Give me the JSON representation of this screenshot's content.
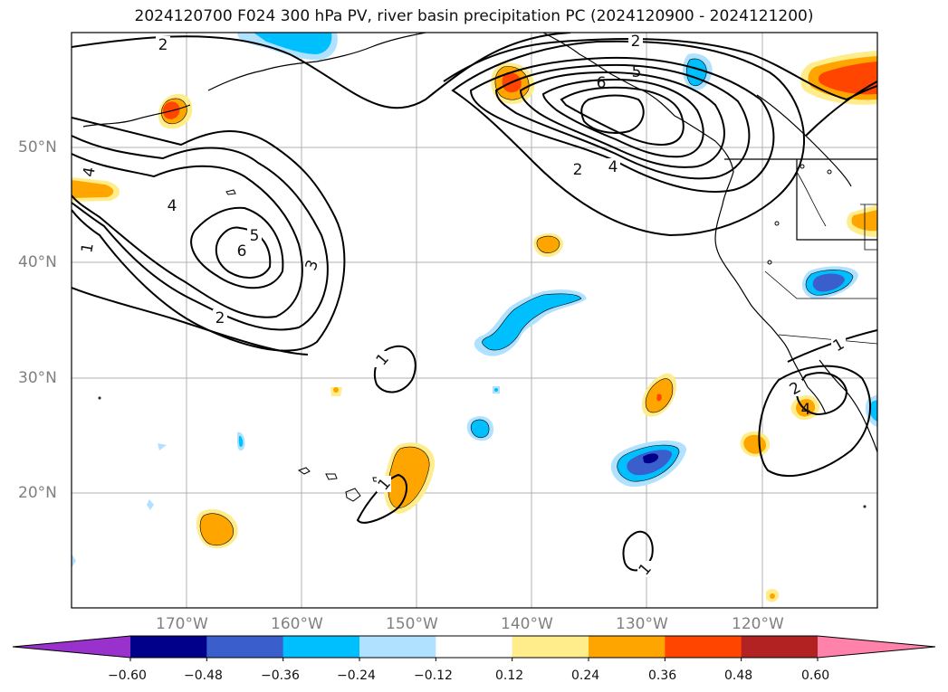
{
  "title": "2024120700 F024 300 hPa PV, river basin precipitation PC (2024120900 - 2024121200)",
  "map": {
    "lon_range": [
      -180,
      -110
    ],
    "lat_range": [
      10,
      60
    ],
    "lat_labels": [
      "50°N",
      "40°N",
      "30°N",
      "20°N"
    ],
    "lon_labels": [
      "170°W",
      "160°W",
      "150°W",
      "140°W",
      "130°W",
      "120°W"
    ],
    "pv_contour_labels": [
      "2",
      "2",
      "4",
      "5",
      "6",
      "2",
      "4",
      "4",
      "5",
      "6",
      "3",
      "2",
      "1",
      "1",
      "1",
      "1",
      "2",
      "1",
      "4"
    ]
  },
  "colorbar": {
    "colors": [
      "#9932CC",
      "#00008B",
      "#3A5FCD",
      "#00BFFF",
      "#B0E2FF",
      "#FFFFFF",
      "#FFEC8B",
      "#FFA500",
      "#FF4500",
      "#B22222",
      "#FF82AB"
    ],
    "labels": [
      "−0.60",
      "−0.48",
      "−0.36",
      "−0.24",
      "−0.12",
      "0.12",
      "0.24",
      "0.36",
      "0.48",
      "0.60"
    ]
  }
}
